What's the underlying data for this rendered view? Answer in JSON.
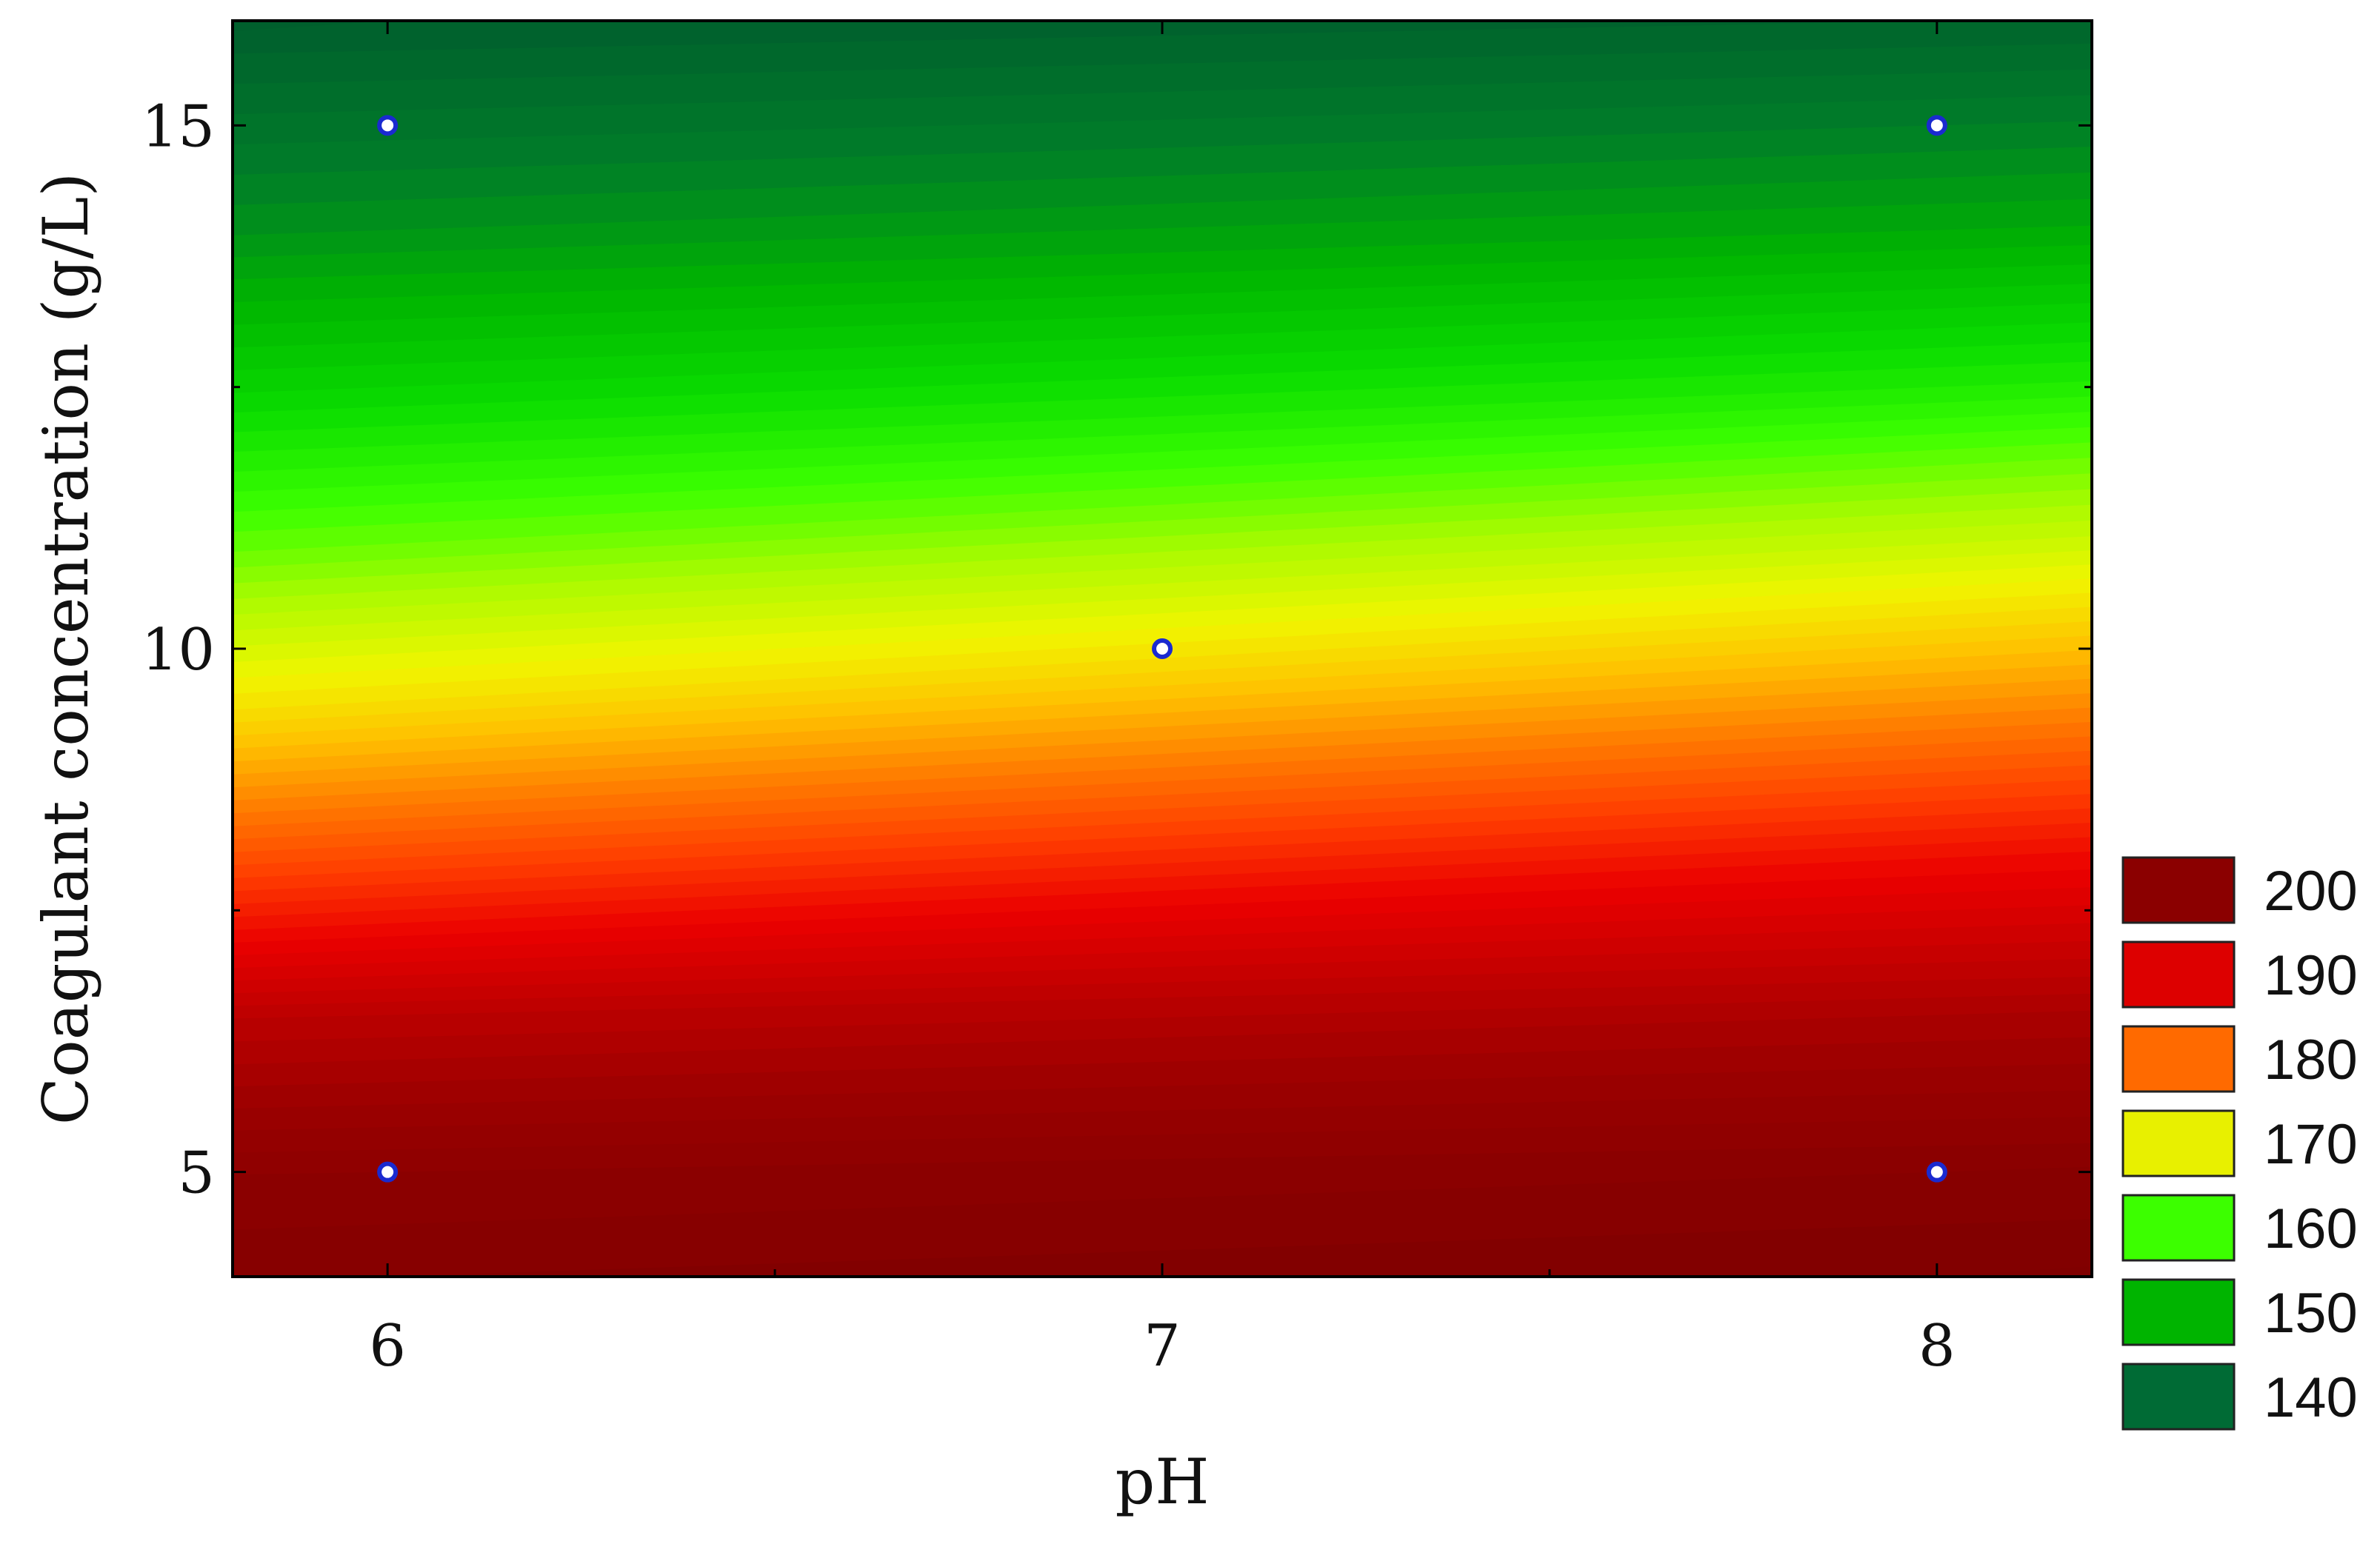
{
  "chart_data": {
    "type": "heatmap",
    "subtype": "filled-contour",
    "title": "",
    "xlabel": "pH",
    "ylabel": "Coagulant concentration (g/L)",
    "xlim": [
      5.8,
      8.2
    ],
    "ylim": [
      4,
      16
    ],
    "x_ticks": [
      6,
      7,
      8
    ],
    "y_ticks": [
      5,
      10,
      15
    ],
    "x_tick_labels": [
      "6",
      "7",
      "8"
    ],
    "y_tick_labels": [
      "5",
      "10",
      "15"
    ],
    "grid": false,
    "legend": {
      "placement": "right-bottom",
      "entries": [
        {
          "label": "200",
          "color": "#8b0000"
        },
        {
          "label": "190",
          "color": "#dd0000"
        },
        {
          "label": "180",
          "color": "#ff6a00"
        },
        {
          "label": "170",
          "color": "#e8f000"
        },
        {
          "label": "160",
          "color": "#3cff00"
        },
        {
          "label": "150",
          "color": "#00b400"
        },
        {
          "label": "140",
          "color": "#006b35"
        }
      ]
    },
    "surface": {
      "description_levels": [
        140,
        150,
        160,
        170,
        180,
        190,
        200
      ],
      "values_at_pH6": [
        {
          "y": 4,
          "z": 205
        },
        {
          "y": 5,
          "z": 203
        },
        {
          "y": 6.5,
          "z": 196
        },
        {
          "y": 8,
          "z": 184
        },
        {
          "y": 9.5,
          "z": 172
        },
        {
          "y": 11,
          "z": 162
        },
        {
          "y": 12.5,
          "z": 154
        },
        {
          "y": 14,
          "z": 147
        },
        {
          "y": 16,
          "z": 140
        }
      ],
      "values_at_pH8": [
        {
          "y": 4,
          "z": 206
        },
        {
          "y": 5,
          "z": 204
        },
        {
          "y": 6.5,
          "z": 198
        },
        {
          "y": 8,
          "z": 189
        },
        {
          "y": 9.5,
          "z": 178
        },
        {
          "y": 11,
          "z": 167
        },
        {
          "y": 12.5,
          "z": 157
        },
        {
          "y": 14,
          "z": 149
        },
        {
          "y": 16,
          "z": 141
        }
      ]
    },
    "design_points": [
      {
        "x": 6,
        "y": 15
      },
      {
        "x": 8,
        "y": 15
      },
      {
        "x": 7,
        "y": 10
      },
      {
        "x": 6,
        "y": 5
      },
      {
        "x": 8,
        "y": 5
      }
    ]
  }
}
